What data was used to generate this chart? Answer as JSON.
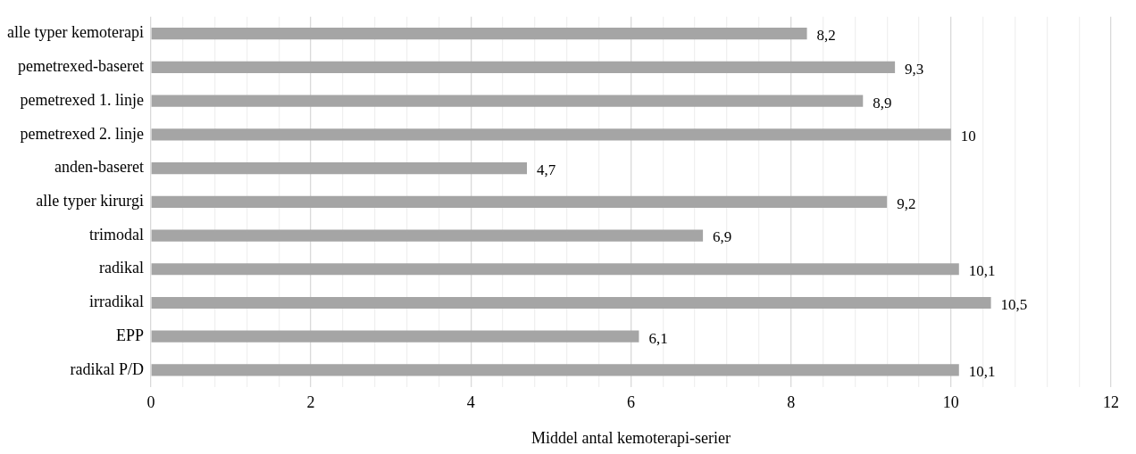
{
  "chart_data": {
    "type": "bar",
    "orientation": "horizontal",
    "xlabel": "Middel antal kemoterapi-serier",
    "categories": [
      "alle typer kemoterapi",
      "pemetrexed-baseret",
      "pemetrexed 1. linje",
      "pemetrexed 2. linje",
      "anden-baseret",
      "alle typer kirurgi",
      "trimodal",
      "radikal",
      "irradikal",
      "EPP",
      "radikal P/D"
    ],
    "values": [
      8.2,
      9.3,
      8.9,
      10,
      4.7,
      9.2,
      6.9,
      10.1,
      10.5,
      6.1,
      10.1
    ],
    "value_labels": [
      "8,2",
      "9,3",
      "8,9",
      "10",
      "4,7",
      "9,2",
      "6,9",
      "10,1",
      "10,5",
      "6,1",
      "10,1"
    ],
    "color": "#a5a5a5",
    "xlim": [
      0,
      12
    ],
    "xticks": [
      0,
      {
        "value": 0.4,
        "label": null
      },
      {
        "value": 0.8,
        "label": null
      },
      {
        "value": 1.2,
        "label": null
      },
      {
        "value": 1.6,
        "label": null
      },
      2,
      {
        "value": 2.4,
        "label": null
      },
      {
        "value": 2.8,
        "label": null
      },
      {
        "value": 3.2,
        "label": null
      },
      {
        "value": 3.6,
        "label": null
      },
      4,
      {
        "value": 4.4,
        "label": null
      },
      {
        "value": 4.8,
        "label": null
      },
      {
        "value": 5.2,
        "label": null
      },
      {
        "value": 5.6,
        "label": null
      },
      6,
      {
        "value": 6.4,
        "label": null
      },
      {
        "value": 6.8,
        "label": null
      },
      {
        "value": 7.2,
        "label": null
      },
      {
        "value": 7.6,
        "label": null
      },
      8,
      {
        "value": 8.4,
        "label": null
      },
      {
        "value": 8.8,
        "label": null
      },
      {
        "value": 9.2,
        "label": null
      },
      {
        "value": 9.6,
        "label": null
      },
      10,
      {
        "value": 10.4,
        "label": null
      },
      {
        "value": 10.8,
        "label": null
      },
      {
        "value": 11.2,
        "label": null
      },
      {
        "value": 11.6,
        "label": null
      },
      12
    ],
    "grid": "x",
    "legend": false
  }
}
